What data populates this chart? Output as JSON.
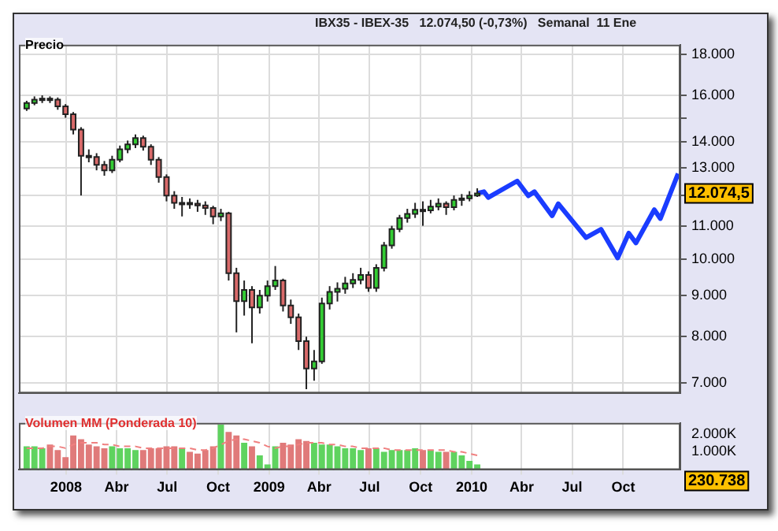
{
  "chart_data": [
    {
      "type": "candlestick",
      "title": "IBX35 - IBEX-35   12.074,50 (-0,73%)   Semanal  11 Ene",
      "ylabel": "Precio",
      "log": true,
      "grid": true,
      "tick_labels": "y",
      "x": [
        "2007-10-22",
        "2007-11-05",
        "2007-11-19",
        "2007-12-03",
        "2007-12-17",
        "2007-12-31",
        "2008-01-14",
        "2008-01-28",
        "2008-02-11",
        "2008-02-25",
        "2008-03-10",
        "2008-03-24",
        "2008-04-07",
        "2008-04-21",
        "2008-05-05",
        "2008-05-19",
        "2008-06-02",
        "2008-06-16",
        "2008-06-30",
        "2008-07-14",
        "2008-07-28",
        "2008-08-11",
        "2008-08-25",
        "2008-09-08",
        "2008-09-22",
        "2008-10-06",
        "2008-10-20",
        "2008-11-03",
        "2008-11-17",
        "2008-12-01",
        "2008-12-15",
        "2008-12-29",
        "2009-01-12",
        "2009-01-26",
        "2009-02-09",
        "2009-02-23",
        "2009-03-09",
        "2009-03-23",
        "2009-04-06",
        "2009-04-20",
        "2009-05-04",
        "2009-05-18",
        "2009-06-01",
        "2009-06-15",
        "2009-06-29",
        "2009-07-13",
        "2009-07-27",
        "2009-08-10",
        "2009-08-24",
        "2009-09-07",
        "2009-09-21",
        "2009-10-05",
        "2009-10-19",
        "2009-11-02",
        "2009-11-16",
        "2009-11-30",
        "2009-12-14",
        "2009-12-28",
        "2010-01-11"
      ],
      "ohlc": [
        [
          15400,
          15750,
          15300,
          15650
        ],
        [
          15650,
          15950,
          15550,
          15800
        ],
        [
          15800,
          16000,
          15650,
          15850
        ],
        [
          15850,
          15950,
          15650,
          15800
        ],
        [
          15800,
          15900,
          15350,
          15500
        ],
        [
          15500,
          15600,
          15000,
          15150
        ],
        [
          15150,
          15250,
          14300,
          14500
        ],
        [
          14500,
          14600,
          12000,
          13450
        ],
        [
          13450,
          13700,
          13200,
          13400
        ],
        [
          13400,
          13550,
          12900,
          13100
        ],
        [
          13100,
          13250,
          12700,
          12900
        ],
        [
          12900,
          13450,
          12800,
          13300
        ],
        [
          13300,
          13850,
          13200,
          13700
        ],
        [
          13700,
          14050,
          13550,
          13900
        ],
        [
          13900,
          14300,
          13750,
          14150
        ],
        [
          14150,
          14250,
          13650,
          13800
        ],
        [
          13800,
          13900,
          13100,
          13300
        ],
        [
          13300,
          13400,
          12450,
          12650
        ],
        [
          12650,
          12750,
          11800,
          12000
        ],
        [
          12000,
          12150,
          11550,
          11750
        ],
        [
          11750,
          11950,
          11300,
          11750
        ],
        [
          11750,
          11900,
          11550,
          11720
        ],
        [
          11720,
          11850,
          11450,
          11660
        ],
        [
          11660,
          11800,
          11350,
          11580
        ],
        [
          11580,
          11650,
          11050,
          11300
        ],
        [
          11300,
          11550,
          11150,
          11400
        ],
        [
          11400,
          11450,
          9400,
          9600
        ],
        [
          9600,
          9750,
          8100,
          8860
        ],
        [
          8860,
          9400,
          8500,
          9150
        ],
        [
          9150,
          9250,
          7850,
          8700
        ],
        [
          8700,
          9150,
          8550,
          9000
        ],
        [
          9000,
          9400,
          8850,
          9250
        ],
        [
          9250,
          9800,
          9150,
          9400
        ],
        [
          9400,
          9450,
          8600,
          8750
        ],
        [
          8750,
          8900,
          8300,
          8460
        ],
        [
          8460,
          8550,
          7700,
          7900
        ],
        [
          7900,
          8000,
          6880,
          7300
        ],
        [
          7300,
          7700,
          7050,
          7450
        ],
        [
          7450,
          8950,
          7400,
          8800
        ],
        [
          8800,
          9250,
          8650,
          9100
        ],
        [
          9100,
          9350,
          8850,
          9180
        ],
        [
          9180,
          9500,
          9050,
          9320
        ],
        [
          9320,
          9600,
          9200,
          9420
        ],
        [
          9420,
          9750,
          9300,
          9550
        ],
        [
          9550,
          9650,
          9100,
          9200
        ],
        [
          9200,
          9850,
          9100,
          9750
        ],
        [
          9750,
          10500,
          9650,
          10400
        ],
        [
          10400,
          11000,
          10300,
          10900
        ],
        [
          10900,
          11350,
          10800,
          11250
        ],
        [
          11250,
          11550,
          11100,
          11380
        ],
        [
          11380,
          11750,
          11250,
          11520
        ],
        [
          11520,
          11800,
          11000,
          11500
        ],
        [
          11500,
          11850,
          11400,
          11620
        ],
        [
          11620,
          11900,
          11500,
          11720
        ],
        [
          11720,
          11800,
          11350,
          11600
        ],
        [
          11600,
          12000,
          11500,
          11850
        ],
        [
          11850,
          12050,
          11650,
          11900
        ],
        [
          11900,
          12150,
          11800,
          12000
        ],
        [
          12000,
          12250,
          11950,
          12074.5
        ]
      ],
      "series": [
        {
          "type": "line",
          "color": "#1a3cff",
          "x": [
            "2010-01-11",
            "2010-01-23",
            "2010-01-31",
            "2010-03-24",
            "2010-04-13",
            "2010-04-24",
            "2010-05-26",
            "2010-06-06",
            "2010-07-26",
            "2010-08-22",
            "2010-09-21",
            "2010-10-11",
            "2010-10-24",
            "2010-11-26",
            "2010-12-07",
            "2011-01-08"
          ],
          "values": [
            12074.5,
            12130,
            11930,
            12510,
            11990,
            12130,
            11320,
            11720,
            10630,
            10890,
            10030,
            10770,
            10470,
            11520,
            11230,
            12780
          ]
        }
      ],
      "xlim": [
        "2007-10-08",
        "2011-01-12"
      ],
      "xticks": [
        {
          "value": "2008-01-01",
          "label": null
        },
        {
          "value": "2008-04-01",
          "label": null
        },
        {
          "value": "2008-07-01",
          "label": null
        },
        {
          "value": "2008-10-01",
          "label": null
        },
        {
          "value": "2009-01-01",
          "label": null
        },
        {
          "value": "2009-04-01",
          "label": null
        },
        {
          "value": "2009-07-01",
          "label": null
        },
        {
          "value": "2009-10-01",
          "label": null
        },
        {
          "value": "2010-01-01",
          "label": null
        },
        {
          "value": "2010-04-01",
          "label": null
        },
        {
          "value": "2010-07-01",
          "label": null
        },
        {
          "value": "2010-10-01",
          "label": null
        }
      ],
      "ylim": [
        6800,
        18500
      ],
      "yticks": [
        {
          "value": 7000,
          "label": "7.000"
        },
        {
          "value": 8000,
          "label": "8.000"
        },
        {
          "value": 9000,
          "label": "9.000"
        },
        {
          "value": 10000,
          "label": "10.000"
        },
        {
          "value": 11000,
          "label": "11.000"
        },
        {
          "value": 12000,
          "label": null
        },
        {
          "value": 13000,
          "label": "13.000"
        },
        {
          "value": 14000,
          "label": "14.000"
        },
        {
          "value": 15000,
          "label": null
        },
        {
          "value": 16000,
          "label": "16.000"
        },
        {
          "value": 18000,
          "label": "18.000"
        }
      ],
      "annotations": [
        "12.074,5"
      ]
    },
    {
      "type": "bar",
      "ylabel": "Volumen MM (Ponderada 10)",
      "grid": "x",
      "x": [
        "2007-10-22",
        "2007-11-05",
        "2007-11-19",
        "2007-12-03",
        "2007-12-17",
        "2007-12-31",
        "2008-01-14",
        "2008-01-28",
        "2008-02-11",
        "2008-02-25",
        "2008-03-10",
        "2008-03-24",
        "2008-04-07",
        "2008-04-21",
        "2008-05-05",
        "2008-05-19",
        "2008-06-02",
        "2008-06-16",
        "2008-06-30",
        "2008-07-14",
        "2008-07-28",
        "2008-08-11",
        "2008-08-25",
        "2008-09-08",
        "2008-09-22",
        "2008-10-06",
        "2008-10-20",
        "2008-11-03",
        "2008-11-17",
        "2008-12-01",
        "2008-12-15",
        "2008-12-29",
        "2009-01-12",
        "2009-01-26",
        "2009-02-09",
        "2009-02-23",
        "2009-03-09",
        "2009-03-23",
        "2009-04-06",
        "2009-04-20",
        "2009-05-04",
        "2009-05-18",
        "2009-06-01",
        "2009-06-15",
        "2009-06-29",
        "2009-07-13",
        "2009-07-27",
        "2009-08-10",
        "2009-08-24",
        "2009-09-07",
        "2009-09-21",
        "2009-10-05",
        "2009-10-19",
        "2009-11-02",
        "2009-11-16",
        "2009-11-30",
        "2009-12-14",
        "2009-12-28",
        "2010-01-11"
      ],
      "series": [
        {
          "type": "bar",
          "values": [
            1300,
            1300,
            1200,
            1400,
            1100,
            700,
            1900,
            1700,
            1400,
            1300,
            1200,
            1300,
            1200,
            1200,
            1100,
            1100,
            1200,
            1200,
            1300,
            1300,
            1200,
            1000,
            900,
            1100,
            1300,
            2500,
            2100,
            1900,
            1500,
            1300,
            800,
            300,
            1300,
            1500,
            1400,
            1700,
            1600,
            1500,
            1400,
            1400,
            1300,
            1200,
            1200,
            1100,
            1200,
            1200,
            1000,
            1100,
            1100,
            1100,
            1200,
            1100,
            1100,
            1000,
            1000,
            1000,
            800,
            500,
            300
          ],
          "colors": [
            "#5fd35f",
            "#5fd35f",
            "#5fd35f",
            "#e07a7a",
            "#e07a7a",
            "#e07a7a",
            "#e07a7a",
            "#e07a7a",
            "#e07a7a",
            "#e07a7a",
            "#e07a7a",
            "#5fd35f",
            "#5fd35f",
            "#5fd35f",
            "#5fd35f",
            "#e07a7a",
            "#e07a7a",
            "#e07a7a",
            "#e07a7a",
            "#e07a7a",
            "#5fd35f",
            "#e07a7a",
            "#e07a7a",
            "#e07a7a",
            "#e07a7a",
            "#5fd35f",
            "#e07a7a",
            "#e07a7a",
            "#5fd35f",
            "#e07a7a",
            "#5fd35f",
            "#5fd35f",
            "#5fd35f",
            "#e07a7a",
            "#e07a7a",
            "#e07a7a",
            "#e07a7a",
            "#5fd35f",
            "#5fd35f",
            "#5fd35f",
            "#5fd35f",
            "#5fd35f",
            "#5fd35f",
            "#5fd35f",
            "#e07a7a",
            "#5fd35f",
            "#5fd35f",
            "#5fd35f",
            "#5fd35f",
            "#5fd35f",
            "#5fd35f",
            "#e07a7a",
            "#5fd35f",
            "#5fd35f",
            "#e07a7a",
            "#5fd35f",
            "#5fd35f",
            "#5fd35f",
            "#5fd35f"
          ]
        },
        {
          "type": "line",
          "color": "#f08080",
          "line_style": "dashed",
          "values": [
            1200,
            1200,
            1200,
            1300,
            1300,
            1200,
            1400,
            1500,
            1500,
            1500,
            1400,
            1400,
            1300,
            1300,
            1300,
            1200,
            1200,
            1200,
            1200,
            1200,
            1200,
            1200,
            1100,
            1100,
            1200,
            1400,
            1600,
            1700,
            1700,
            1600,
            1500,
            1300,
            1200,
            1300,
            1300,
            1400,
            1500,
            1500,
            1500,
            1400,
            1400,
            1300,
            1300,
            1200,
            1200,
            1200,
            1200,
            1100,
            1100,
            1100,
            1100,
            1100,
            1100,
            1100,
            1100,
            1000,
            1000,
            900,
            800
          ]
        }
      ],
      "xlim": [
        "2007-10-08",
        "2011-01-12"
      ],
      "xticks": [
        {
          "value": "2008-01-01",
          "label": "2008"
        },
        {
          "value": "2008-04-01",
          "label": "Abr"
        },
        {
          "value": "2008-07-01",
          "label": "Jul"
        },
        {
          "value": "2008-10-01",
          "label": "Oct"
        },
        {
          "value": "2009-01-01",
          "label": "2009"
        },
        {
          "value": "2009-04-01",
          "label": "Abr"
        },
        {
          "value": "2009-07-01",
          "label": "Jul"
        },
        {
          "value": "2009-10-01",
          "label": "Oct"
        },
        {
          "value": "2010-01-01",
          "label": "2010"
        },
        {
          "value": "2010-04-01",
          "label": "Abr"
        },
        {
          "value": "2010-07-01",
          "label": "Jul"
        },
        {
          "value": "2010-10-01",
          "label": "Oct"
        }
      ],
      "ylim": [
        0,
        2600
      ],
      "yticks": [
        {
          "value": 1000,
          "label": "1.000K"
        },
        {
          "value": 2000,
          "label": "2.000K"
        }
      ],
      "annotations": [
        "230.738"
      ]
    }
  ]
}
